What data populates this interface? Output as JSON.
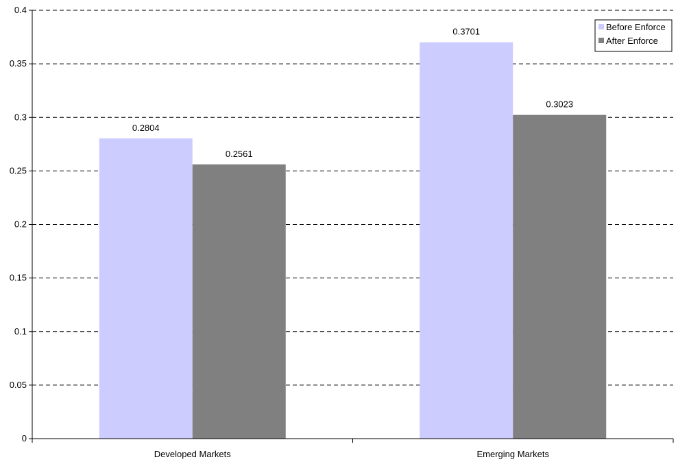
{
  "chart_data": {
    "type": "bar",
    "categories": [
      "Developed Markets",
      "Emerging Markets"
    ],
    "series": [
      {
        "name": "Before Enforce",
        "values": [
          0.2804,
          0.3701
        ],
        "labels": [
          "0.2804",
          "0.3701"
        ],
        "color": "#ccccff"
      },
      {
        "name": "After Enforce",
        "values": [
          0.2561,
          0.3023
        ],
        "labels": [
          "0.2561",
          "0.3023"
        ],
        "color": "#808080"
      }
    ],
    "title": "",
    "xlabel": "",
    "ylabel": "",
    "ylim": [
      0,
      0.4
    ],
    "yticks": [
      "0",
      "0.05",
      "0.1",
      "0.15",
      "0.2",
      "0.25",
      "0.3",
      "0.35",
      "0.4"
    ],
    "grid": "horizontal dashed",
    "legend_position": "top-right"
  }
}
